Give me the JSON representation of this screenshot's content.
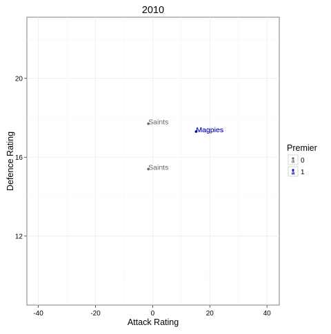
{
  "chart_data": {
    "type": "scatter",
    "title": "2010",
    "xlabel": "Attack Rating",
    "ylabel": "Defence Rating",
    "xlim": [
      -44,
      44.3
    ],
    "ylim": [
      8.5,
      23.1
    ],
    "x_ticks": [
      -40,
      -20,
      0,
      20,
      40
    ],
    "y_ticks": [
      12,
      16,
      20
    ],
    "x_tick_labels": [
      "-40",
      "-20",
      "0",
      "20",
      "40"
    ],
    "y_tick_labels": [
      "12",
      "16",
      "20"
    ],
    "grid": true,
    "legend_position": "right",
    "legend": {
      "title": "Premier",
      "entries": [
        {
          "key": "0",
          "label": "0",
          "color": "#666666"
        },
        {
          "key": "1",
          "label": "1",
          "color": "#0000cc"
        }
      ]
    },
    "points": [
      {
        "label": "Saints",
        "x": -1.5,
        "y": 17.7,
        "premier": "0"
      },
      {
        "label": "Saints",
        "x": -1.5,
        "y": 15.4,
        "premier": "0"
      },
      {
        "label": "Magpies",
        "x": 15.2,
        "y": 17.3,
        "premier": "0"
      },
      {
        "label": "Magpies",
        "x": 15.2,
        "y": 17.3,
        "premier": "1"
      }
    ]
  }
}
